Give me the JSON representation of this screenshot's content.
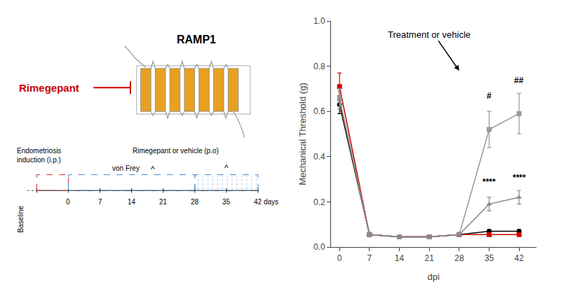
{
  "chart_data": [
    {
      "type": "diagram",
      "title": "RAMP1",
      "annotations": [
        {
          "text": "Rimegepant",
          "color": "#cc0000"
        }
      ],
      "colors": [
        "#E8A020",
        "#888888",
        "#999999",
        "#cc0000"
      ]
    },
    {
      "type": "timeline",
      "categories": [
        null,
        "0",
        "7",
        "14",
        "21",
        "28",
        "35",
        "42"
      ],
      "xlabel": "days",
      "annotations": [
        "Baseline",
        "Endometriosis\ninduction (i.p.)",
        "von Frey",
        "^",
        "Rimegepant or vehicle (p.o)",
        "^"
      ],
      "periods": [
        {
          "start": 0,
          "end": 1,
          "color": "#cc3333"
        },
        {
          "start": 1,
          "end": 5,
          "color": "#4488cc"
        },
        {
          "start": 5,
          "end": 7,
          "color": "#4488cc",
          "line_style": "dotted"
        }
      ]
    },
    {
      "type": "line",
      "x": [
        0,
        7,
        14,
        21,
        28,
        35,
        42
      ],
      "series": [
        {
          "color": "#000000",
          "marker": "circle",
          "values": [
            0.63,
            0.055,
            0.045,
            0.045,
            0.055,
            0.07,
            0.07
          ],
          "errors": [
            0.04,
            0.005,
            0.005,
            0.005,
            0.005,
            0.007,
            0.007
          ]
        },
        {
          "color": "#cc0000",
          "marker": "square",
          "values": [
            0.71,
            0.055,
            0.045,
            0.045,
            0.055,
            0.055,
            0.055
          ],
          "errors": [
            0.06,
            0.007,
            0.005,
            0.005,
            0.005,
            0.005,
            0.005
          ]
        },
        {
          "color": "#999999",
          "marker": "square",
          "values": [
            0.66,
            0.055,
            0.045,
            0.045,
            0.055,
            0.52,
            0.59
          ],
          "errors": [
            0.04,
            0.007,
            0.005,
            0.005,
            0.007,
            0.08,
            0.09
          ]
        },
        {
          "color": "#888888",
          "marker": "triangle-up",
          "values": [
            0.65,
            0.055,
            0.045,
            0.045,
            0.055,
            0.19,
            0.22
          ],
          "errors": [
            0.04,
            0.007,
            0.005,
            0.005,
            0.007,
            0.03,
            0.03
          ]
        }
      ],
      "xlabel": "dpi",
      "ylabel": "Mechanical Threshold (g)",
      "xlim": [
        -2,
        46
      ],
      "xticks": [
        0,
        7,
        14,
        21,
        28,
        35,
        42
      ],
      "ylim": [
        0,
        1.0
      ],
      "yticks": [
        {
          "value": 0.0,
          "label": "0.0"
        },
        0.2,
        0.4,
        0.6,
        0.8,
        {
          "value": 1.0,
          "label": "1.0"
        }
      ],
      "grid": false,
      "annotations": [
        {
          "text": "Treatment or vehicle",
          "x": 28,
          "y": 0.78,
          "text_x": 21,
          "text_y": 0.97
        },
        {
          "text": "****",
          "x": 35,
          "y": 0.26
        },
        {
          "text": "****",
          "x": 42,
          "y": 0.28
        },
        {
          "text": "#",
          "x": 35,
          "y": 0.64
        },
        {
          "text": "##",
          "x": 42,
          "y": 0.71
        }
      ]
    }
  ]
}
